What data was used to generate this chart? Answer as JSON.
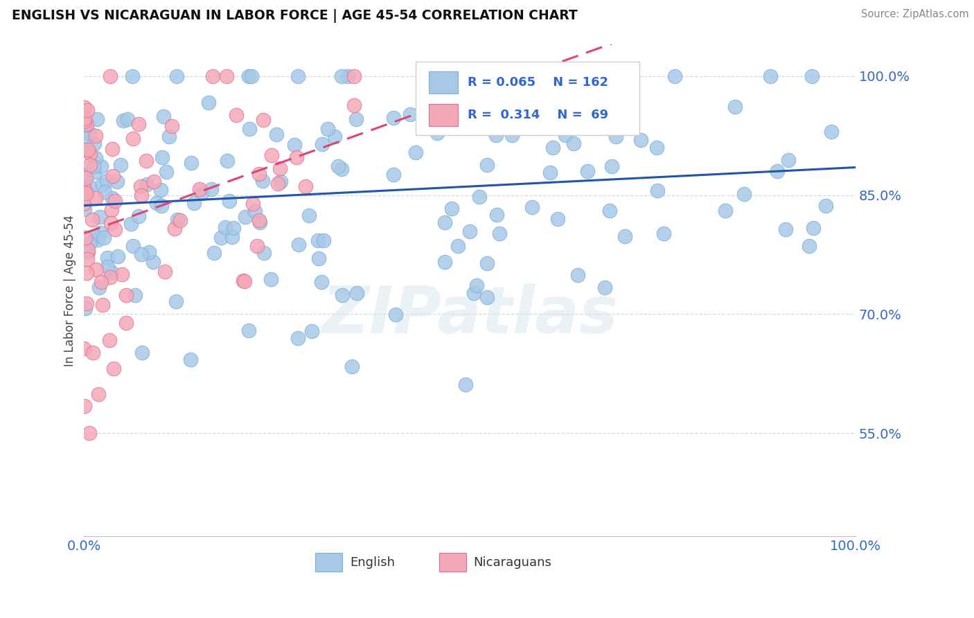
{
  "title": "ENGLISH VS NICARAGUAN IN LABOR FORCE | AGE 45-54 CORRELATION CHART",
  "source": "Source: ZipAtlas.com",
  "ylabel": "In Labor Force | Age 45-54",
  "xlim": [
    0.0,
    1.0
  ],
  "ylim": [
    0.42,
    1.04
  ],
  "x_ticks": [
    0.0,
    1.0
  ],
  "x_tick_labels": [
    "0.0%",
    "100.0%"
  ],
  "y_ticks": [
    0.55,
    0.7,
    0.85,
    1.0
  ],
  "y_tick_labels": [
    "55.0%",
    "70.0%",
    "85.0%",
    "100.0%"
  ],
  "english_color": "#a8c8e8",
  "english_edge_color": "#7aafd4",
  "nicaraguan_color": "#f4a8b8",
  "nicaraguan_edge_color": "#e07090",
  "english_line_color": "#2255aa",
  "nicaraguan_line_color": "#dd4477",
  "legend_R_english": "0.065",
  "legend_N_english": "162",
  "legend_R_nicaraguan": "0.314",
  "legend_N_nicaraguan": "69",
  "legend_color": "#3366cc",
  "watermark_text": "ZIPatlas",
  "background_color": "#ffffff",
  "grid_color": "#c8d8e8"
}
